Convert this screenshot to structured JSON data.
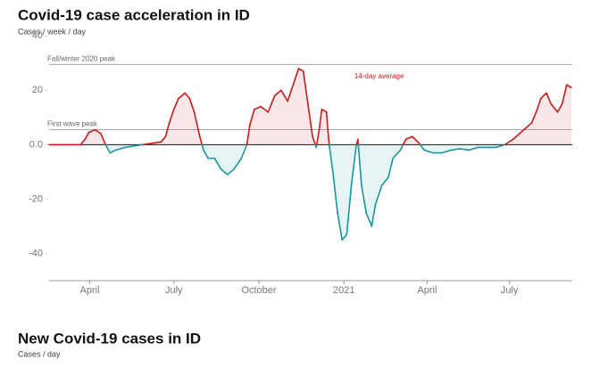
{
  "chart_data": [
    {
      "type": "line",
      "title": "Covid-19 case acceleration in ID",
      "subtitle": "Cases / week / day",
      "annotation": {
        "text": "14-day average",
        "x": 357,
        "y": 25
      },
      "reference_lines": [
        {
          "label": "Fall/winter 2020 peak",
          "value": 29.5
        },
        {
          "label": "First wave peak",
          "value": 5.5
        }
      ],
      "positive_color": "#cc1a1a",
      "negative_color": "#16979c",
      "x": [
        0,
        34,
        39,
        43,
        50,
        56,
        61,
        66,
        72,
        82,
        92,
        101,
        111,
        121,
        126,
        130,
        135,
        140,
        147,
        152,
        157,
        163,
        167,
        172,
        179,
        186,
        193,
        200,
        208,
        214,
        217,
        222,
        229,
        237,
        244,
        251,
        258,
        264,
        270,
        275,
        280,
        285,
        289,
        292,
        295,
        300,
        303,
        307,
        312,
        317,
        322,
        327,
        332,
        334,
        338,
        343,
        349,
        353,
        360,
        367,
        372,
        380,
        386,
        393,
        399,
        406,
        415,
        425,
        435,
        444,
        454,
        464,
        473,
        483,
        493,
        502,
        512,
        522,
        527,
        532,
        538,
        543,
        550,
        555,
        560,
        565
      ],
      "values": [
        0,
        0,
        2,
        4.5,
        5.5,
        4,
        0,
        -3,
        -2,
        -1,
        -0.5,
        0,
        0.5,
        1,
        3,
        8,
        13,
        17,
        19,
        17,
        12,
        3,
        -2,
        -5,
        -5,
        -9,
        -11,
        -9,
        -5,
        0,
        7,
        13,
        14,
        12,
        18,
        20,
        16,
        22,
        28,
        27,
        15,
        3,
        -1,
        5,
        13,
        12,
        0,
        -10,
        -25,
        -35,
        -33,
        -15,
        -1,
        2,
        -15,
        -25,
        -30,
        -22,
        -15,
        -12,
        -5,
        -2,
        2,
        3,
        1,
        -2,
        -3,
        -3,
        -2,
        -1.5,
        -2,
        -1,
        -1,
        -1,
        0,
        2,
        5,
        8,
        12,
        17,
        19,
        15,
        12,
        15,
        22,
        21
      ],
      "xlim": [
        0,
        566
      ],
      "xticks": [
        {
          "value": 44,
          "label": "April"
        },
        {
          "value": 135,
          "label": "July"
        },
        {
          "value": 227,
          "label": "October"
        },
        {
          "value": 319,
          "label": "2021"
        },
        {
          "value": 409,
          "label": "April"
        },
        {
          "value": 498,
          "label": "July"
        }
      ],
      "ylim": [
        -50,
        45
      ],
      "yticks": [
        40,
        20,
        {
          "value": 0,
          "label": "0.0"
        },
        -20,
        -40
      ]
    },
    {
      "title": "New Covid-19 cases in ID",
      "subtitle": "Cases / day"
    }
  ]
}
